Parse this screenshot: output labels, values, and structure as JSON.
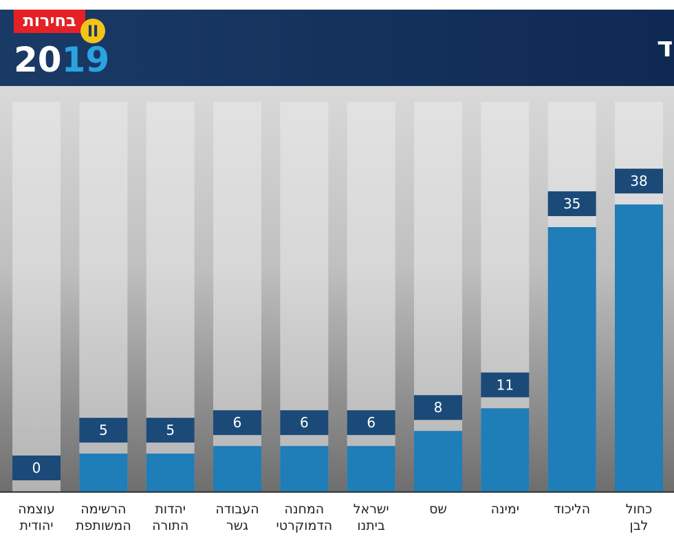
{
  "logo": {
    "word": "בחירות",
    "year_a": "20",
    "year_b": "19",
    "round": "II"
  },
  "chart_data": {
    "type": "bar",
    "title": "תמונת המנדטים לפי המעטפות הכפולות בלבד",
    "categories": [
      "כחול\nלבן",
      "הליכוד",
      "ימינה",
      "שס",
      "ישראל\nביתנו",
      "המחנה\nהדמוקרטי",
      "העבודה\nגשר",
      "יהדות\nהתורה",
      "הרשימה\nהמשותפת",
      "עוצמה\nיהודית"
    ],
    "values": [
      38,
      35,
      11,
      8,
      6,
      6,
      6,
      5,
      5,
      0
    ],
    "color": "#1f7db8",
    "label_color": "#1b4a78"
  }
}
